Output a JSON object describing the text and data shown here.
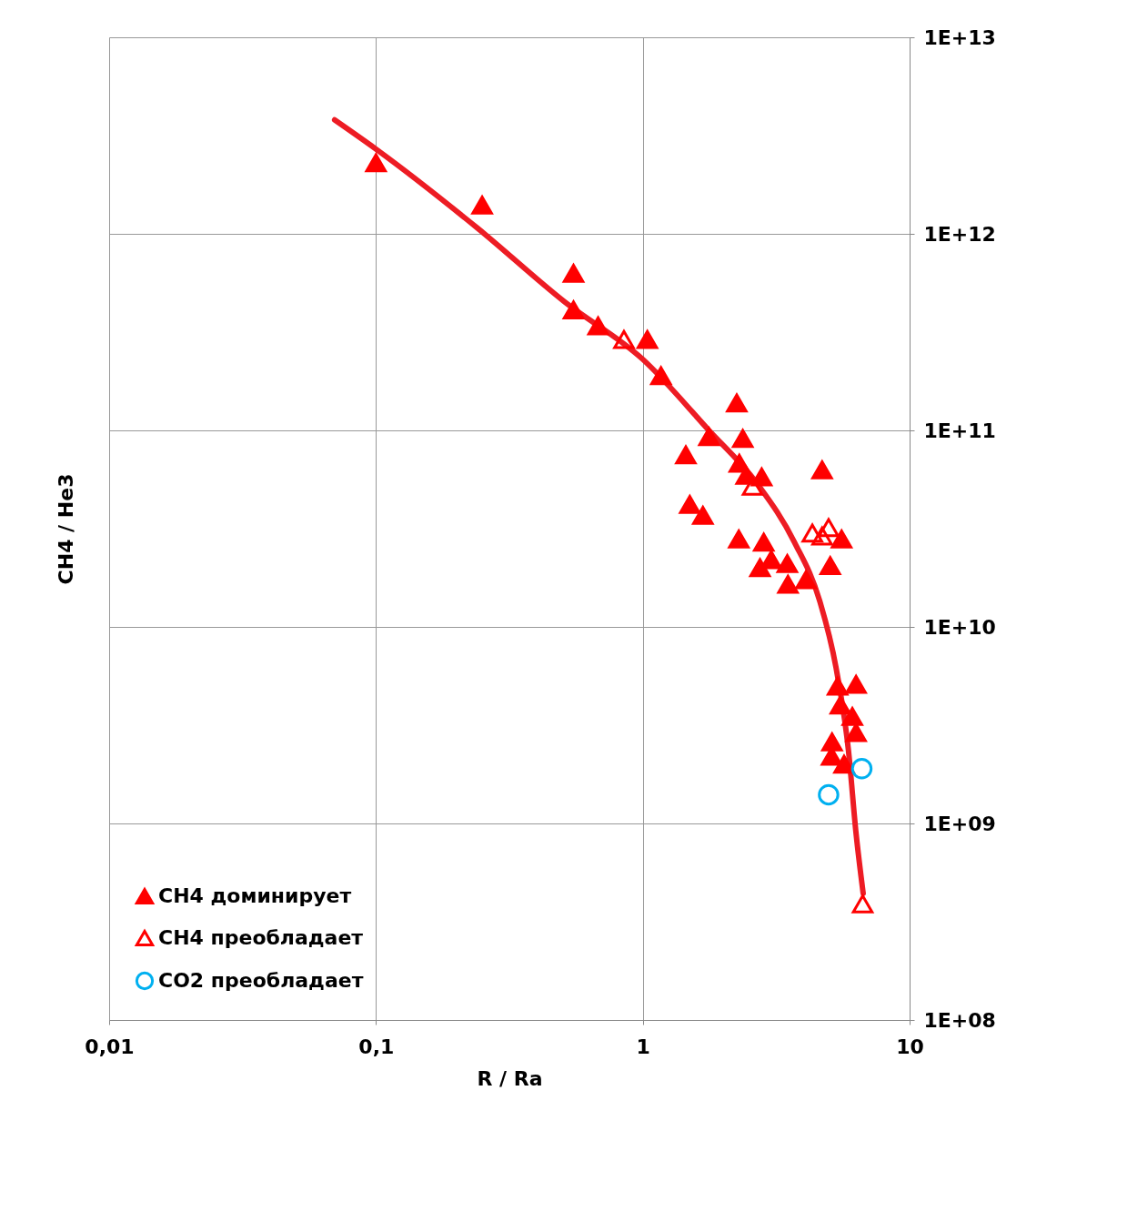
{
  "chart_data": {
    "type": "scatter",
    "xlabel": "R / Ra",
    "ylabel": "CH4 / He3",
    "log": "xy",
    "grid": true,
    "legend": "bottom left",
    "xlim": [
      0.01,
      10
    ],
    "xticks": [
      {
        "value": 0.01,
        "label": "0,01"
      },
      {
        "value": 0.1,
        "label": "0,1"
      },
      1,
      10
    ],
    "ylim": [
      100000000.0,
      10000000000000.0
    ],
    "yticks": [
      {
        "value": 100000000.0,
        "label": "1E+08"
      },
      {
        "value": 1000000000.0,
        "label": "1E+09"
      },
      {
        "value": 10000000000.0,
        "label": "1E+10"
      },
      {
        "value": 100000000000.0,
        "label": "1E+11"
      },
      {
        "value": 1000000000000.0,
        "label": "1E+12"
      },
      {
        "value": 10000000000000.0,
        "label": "1E+13"
      }
    ],
    "series": [
      {
        "name": "CH4 доминирует",
        "marker": "triangle",
        "color": "#ff0000",
        "x": [
          0.1,
          0.25,
          0.55,
          0.55,
          0.68,
          1.04,
          1.17,
          2.25,
          1.77,
          2.37,
          1.45,
          2.3,
          2.44,
          2.79,
          4.7,
          1.5,
          1.68,
          2.29,
          2.84,
          3.03,
          2.75,
          3.48,
          3.5,
          4.09,
          5.56,
          5.04,
          6.3,
          5.37,
          5.5,
          6.1,
          6.3,
          5.12,
          5.1,
          5.68
        ],
        "values": [
          2300000000000.0,
          1400000000000.0,
          630000000000.0,
          410000000000.0,
          340000000000.0,
          290000000000.0,
          190000000000.0,
          138000000000.0,
          93000000000.0,
          91000000000.0,
          75000000000.0,
          68000000000.0,
          59000000000.0,
          58000000000.0,
          63000000000.0,
          42000000000.0,
          37000000000.0,
          28000000000.0,
          27000000000.0,
          22000000000.0,
          20000000000.0,
          21000000000.0,
          16500000000.0,
          17400000000.0,
          28000000000.0,
          20500000000.0,
          5100000000.0,
          5000000000.0,
          4000000000.0,
          3500000000.0,
          2900000000.0,
          2600000000.0,
          2200000000.0,
          2000000000.0
        ]
      },
      {
        "name": "CH4 преобладает",
        "marker": "triangle",
        "color": "#ff0000",
        "x": [
          0.85,
          2.58,
          4.32,
          4.7,
          4.97,
          6.67
        ],
        "values": [
          290000000000.0,
          52000000000.0,
          30000000000.0,
          29000000000.0,
          32000000000.0,
          390000000.0
        ]
      },
      {
        "name": "CO2 преобладает",
        "marker": "circle",
        "color": "#00b0f0",
        "x": [
          6.62,
          4.97
        ],
        "values": [
          1900000000.0,
          1400000000.0
        ]
      },
      {
        "type": "line",
        "color": "#ed1c24",
        "x": [
          0.07,
          0.1,
          0.24,
          0.51,
          1.0,
          1.77,
          2.7,
          3.7,
          4.6,
          5.3,
          5.9,
          6.3,
          6.7
        ],
        "values": [
          3800000000000.0,
          2700000000000.0,
          1070000000000.0,
          450000000000.0,
          230000000000.0,
          100000000000.0,
          53000000000.0,
          27000000000.0,
          13600000000.0,
          6200000000.0,
          2350000000.0,
          890000000.0,
          440000000.0
        ]
      }
    ]
  }
}
